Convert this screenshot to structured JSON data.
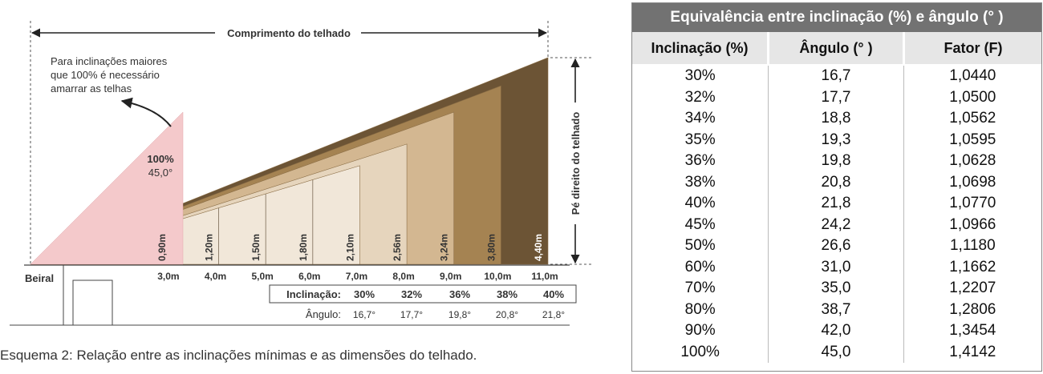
{
  "diagram": {
    "length_label": "Comprimento do telhado",
    "height_label": "Pé direito do telhado",
    "note_lines": [
      "Para inclinações maiores",
      "que 100% é necessário",
      "amarrar as telhas"
    ],
    "steep": {
      "percent": "100%",
      "angle": "45,0°"
    },
    "eave_label": "Beiral",
    "heights": [
      "0,90m",
      "1,20m",
      "1,50m",
      "1,80m",
      "2,10m",
      "2,56m",
      "3,24m",
      "3,80m",
      "4,40m"
    ],
    "lengths": [
      "3,0m",
      "4,0m",
      "5,0m",
      "6,0m",
      "7,0m",
      "8,0m",
      "9,0m",
      "10,0m",
      "11,0m"
    ],
    "incl_label": "Inclinação:",
    "inclinations": [
      "30%",
      "32%",
      "36%",
      "38%",
      "40%"
    ],
    "angle_label": "Ângulo:",
    "angles": [
      "16,7°",
      "17,7°",
      "19,8°",
      "20,8°",
      "21,8°"
    ],
    "colors": {
      "steep": "#f4c9cb",
      "ramp": [
        "#f1e7d9",
        "#e6d5bd",
        "#d3b791",
        "#a58352",
        "#6c5435"
      ]
    }
  },
  "caption": "Esquema 2: Relação entre as inclinações mínimas e as dimensões do telhado.",
  "table": {
    "title": "Equivalência entre inclinação (%) e ângulo (° )",
    "headers": [
      "Inclinação (%)",
      "Ângulo (° )",
      "Fator (F)"
    ],
    "inclination": [
      "30%",
      "32%",
      "34%",
      "35%",
      "36%",
      "38%",
      "40%",
      "45%",
      "50%",
      "60%",
      "70%",
      "80%",
      "90%",
      "100%"
    ],
    "angle": [
      "16,7",
      "17,7",
      "18,8",
      "19,3",
      "19,8",
      "20,8",
      "21,8",
      "24,2",
      "26,6",
      "31,0",
      "35,0",
      "38,7",
      "42,0",
      "45,0"
    ],
    "factor": [
      "1,0440",
      "1,0500",
      "1,0562",
      "1,0595",
      "1,0628",
      "1,0698",
      "1,0770",
      "1,0966",
      "1,1180",
      "1,1662",
      "1,2207",
      "1,2806",
      "1,3454",
      "1,4142"
    ]
  }
}
